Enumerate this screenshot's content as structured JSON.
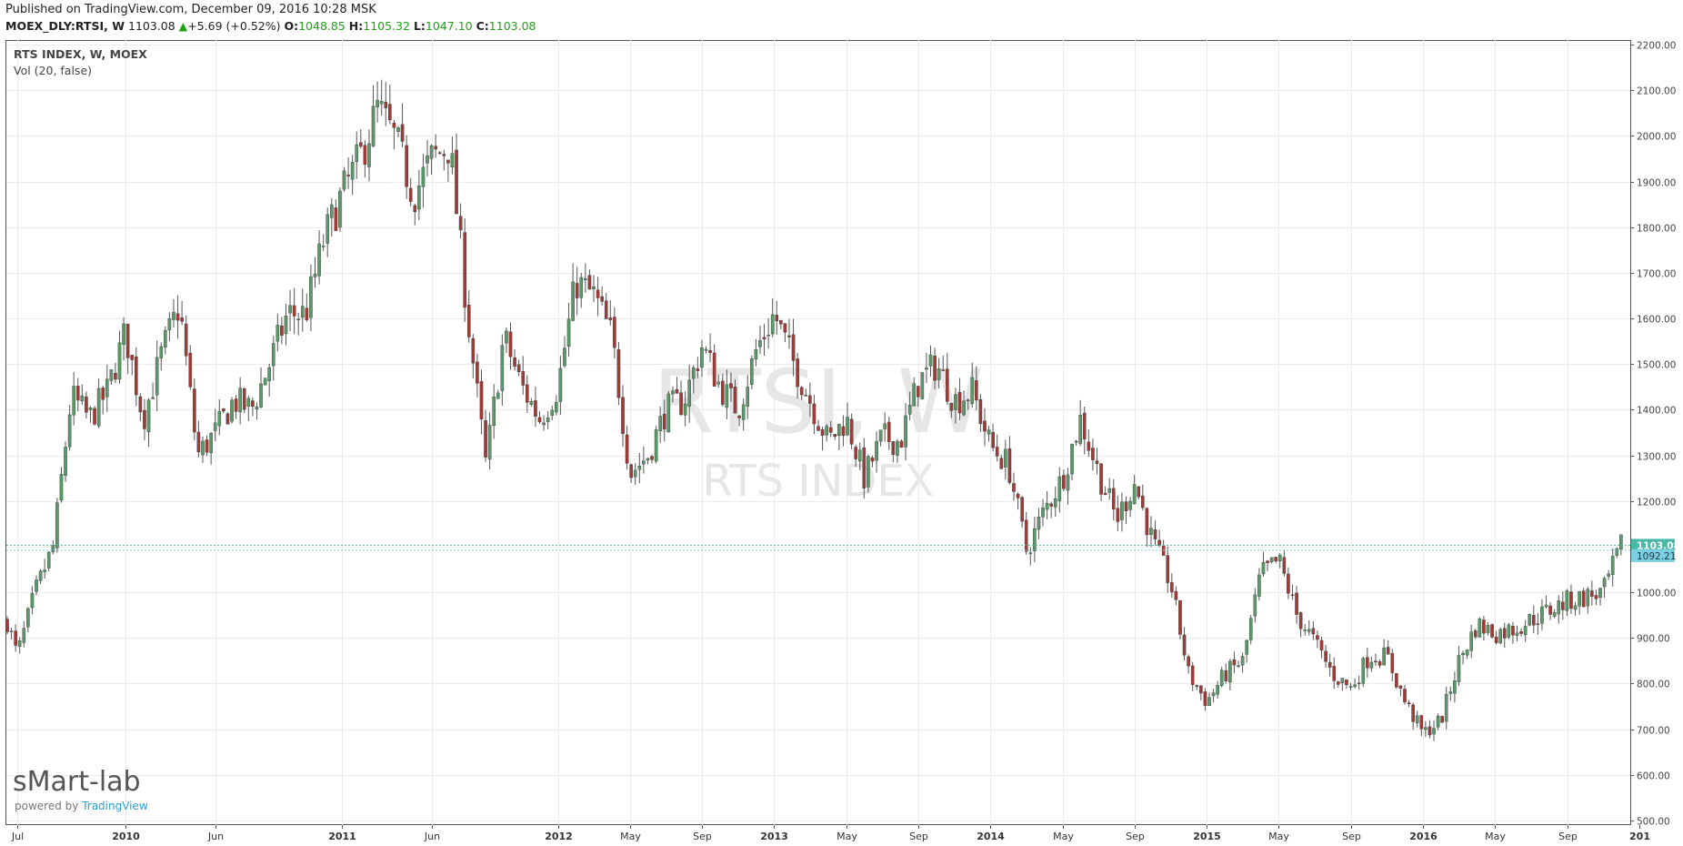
{
  "header": {
    "published": "Published on TradingView.com, December 09, 2016 10:28 MSK",
    "symbol": "MOEX_DLY:RTSI, W",
    "last": "1103.08",
    "change": "+5.69 (+0.52%)",
    "open_label": "O:",
    "open": "1048.85",
    "high_label": "H:",
    "high": "1105.32",
    "low_label": "L:",
    "low": "1047.10",
    "close_label": "C:",
    "close": "1103.08",
    "up_icon": "triangle-up-icon"
  },
  "legend": {
    "series": "RTS INDEX, W, MOEX",
    "volume": "Vol (20, false)"
  },
  "watermark": {
    "ticker": "RTSI, W",
    "name": "RTS INDEX"
  },
  "branding": {
    "logo": "sMart-lab",
    "powered_prefix": "powered by ",
    "powered_brand": "TradingView"
  },
  "colors": {
    "up": "#5b9a68",
    "down": "#a23b36",
    "accent_line": "#4ab8a8",
    "prev_close_tag": "#7ccfe0"
  },
  "chart_data": {
    "type": "candlestick",
    "title": "RTS INDEX, W, MOEX",
    "xlabel": "",
    "ylabel": "",
    "ylim": [
      490,
      2210
    ],
    "y_ticks": [
      "500.00",
      "600.00",
      "700.00",
      "800.00",
      "900.00",
      "1000.00",
      "1100.00",
      "1200.00",
      "1300.00",
      "1400.00",
      "1500.00",
      "1600.00",
      "1700.00",
      "1800.00",
      "1900.00",
      "2000.00",
      "2100.00",
      "2200.00"
    ],
    "x_ticks": [
      {
        "label": "Jul",
        "date": "2009-07"
      },
      {
        "label": "2010",
        "date": "2010-01"
      },
      {
        "label": "Jun",
        "date": "2010-06"
      },
      {
        "label": "2011",
        "date": "2011-01"
      },
      {
        "label": "Jun",
        "date": "2011-06"
      },
      {
        "label": "2012",
        "date": "2012-01"
      },
      {
        "label": "May",
        "date": "2012-05"
      },
      {
        "label": "Sep",
        "date": "2012-09"
      },
      {
        "label": "2013",
        "date": "2013-01"
      },
      {
        "label": "May",
        "date": "2013-05"
      },
      {
        "label": "Sep",
        "date": "2013-09"
      },
      {
        "label": "2014",
        "date": "2014-01"
      },
      {
        "label": "May",
        "date": "2014-05"
      },
      {
        "label": "Sep",
        "date": "2014-09"
      },
      {
        "label": "2015",
        "date": "2015-01"
      },
      {
        "label": "May",
        "date": "2015-05"
      },
      {
        "label": "Sep",
        "date": "2015-09"
      },
      {
        "label": "2016",
        "date": "2016-01"
      },
      {
        "label": "May",
        "date": "2016-05"
      },
      {
        "label": "Sep",
        "date": "2016-09"
      },
      {
        "label": "201",
        "date": "2017-01"
      }
    ],
    "last_price": 1103.08,
    "last_price_label": "1103.08",
    "prev_close": 1092.21,
    "prev_close_label": "1092.21",
    "start_date": "2009-07",
    "end_date": "2016-12",
    "approx_close_path": [
      [
        "2009-06",
        1000
      ],
      [
        "2009-07",
        860
      ],
      [
        "2009-08",
        1000
      ],
      [
        "2009-09",
        1100
      ],
      [
        "2009-10",
        1430
      ],
      [
        "2009-11",
        1380
      ],
      [
        "2009-12",
        1440
      ],
      [
        "2010-01",
        1570
      ],
      [
        "2010-02",
        1380
      ],
      [
        "2010-03",
        1520
      ],
      [
        "2010-04",
        1630
      ],
      [
        "2010-05",
        1300
      ],
      [
        "2010-06",
        1350
      ],
      [
        "2010-07",
        1420
      ],
      [
        "2010-08",
        1400
      ],
      [
        "2010-09",
        1500
      ],
      [
        "2010-10",
        1610
      ],
      [
        "2010-11",
        1610
      ],
      [
        "2010-12",
        1770
      ],
      [
        "2011-01",
        1870
      ],
      [
        "2011-02",
        1950
      ],
      [
        "2011-03",
        2060
      ],
      [
        "2011-04",
        1990
      ],
      [
        "2011-05",
        1870
      ],
      [
        "2011-06",
        1950
      ],
      [
        "2011-07",
        1980
      ],
      [
        "2011-08",
        1600
      ],
      [
        "2011-09",
        1280
      ],
      [
        "2011-10",
        1560
      ],
      [
        "2011-11",
        1450
      ],
      [
        "2011-12",
        1380
      ],
      [
        "2012-01",
        1450
      ],
      [
        "2012-02",
        1680
      ],
      [
        "2012-03",
        1650
      ],
      [
        "2012-04",
        1560
      ],
      [
        "2012-05",
        1260
      ],
      [
        "2012-06",
        1300
      ],
      [
        "2012-07",
        1400
      ],
      [
        "2012-08",
        1420
      ],
      [
        "2012-09",
        1540
      ],
      [
        "2012-10",
        1450
      ],
      [
        "2012-11",
        1400
      ],
      [
        "2012-12",
        1530
      ],
      [
        "2013-01",
        1610
      ],
      [
        "2013-02",
        1510
      ],
      [
        "2013-03",
        1420
      ],
      [
        "2013-04",
        1330
      ],
      [
        "2013-05",
        1380
      ],
      [
        "2013-06",
        1250
      ],
      [
        "2013-07",
        1340
      ],
      [
        "2013-08",
        1330
      ],
      [
        "2013-09",
        1460
      ],
      [
        "2013-10",
        1500
      ],
      [
        "2013-11",
        1420
      ],
      [
        "2013-12",
        1440
      ],
      [
        "2014-01",
        1320
      ],
      [
        "2014-02",
        1280
      ],
      [
        "2014-03",
        1090
      ],
      [
        "2014-04",
        1180
      ],
      [
        "2014-05",
        1250
      ],
      [
        "2014-06",
        1380
      ],
      [
        "2014-07",
        1260
      ],
      [
        "2014-08",
        1160
      ],
      [
        "2014-09",
        1240
      ],
      [
        "2014-10",
        1110
      ],
      [
        "2014-11",
        1020
      ],
      [
        "2014-12",
        820
      ],
      [
        "2015-01",
        760
      ],
      [
        "2015-02",
        820
      ],
      [
        "2015-03",
        850
      ],
      [
        "2015-04",
        1040
      ],
      [
        "2015-05",
        1070
      ],
      [
        "2015-06",
        950
      ],
      [
        "2015-07",
        890
      ],
      [
        "2015-08",
        820
      ],
      [
        "2015-09",
        790
      ],
      [
        "2015-10",
        860
      ],
      [
        "2015-11",
        860
      ],
      [
        "2015-12",
        760
      ],
      [
        "2016-01",
        690
      ],
      [
        "2016-02",
        720
      ],
      [
        "2016-03",
        850
      ],
      [
        "2016-04",
        930
      ],
      [
        "2016-05",
        910
      ],
      [
        "2016-06",
        920
      ],
      [
        "2016-07",
        940
      ],
      [
        "2016-08",
        960
      ],
      [
        "2016-09",
        980
      ],
      [
        "2016-10",
        990
      ],
      [
        "2016-11",
        1000
      ],
      [
        "2016-12",
        1103
      ]
    ]
  }
}
